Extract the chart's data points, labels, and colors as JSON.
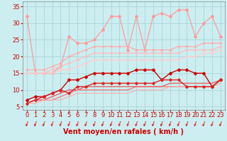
{
  "title": "",
  "xlabel": "Vent moyen/en rafales ( km/h )",
  "bg_color": "#cceef0",
  "grid_color": "#aad4d8",
  "x_ticks": [
    0,
    1,
    2,
    3,
    4,
    5,
    6,
    7,
    8,
    9,
    10,
    11,
    12,
    13,
    14,
    15,
    16,
    17,
    18,
    19,
    20,
    21,
    22,
    23
  ],
  "y_ticks": [
    5,
    10,
    15,
    20,
    25,
    30,
    35
  ],
  "ylim": [
    4.0,
    36.5
  ],
  "xlim": [
    -0.5,
    23.5
  ],
  "lines": [
    {
      "x": [
        0,
        1,
        2,
        3,
        4,
        5,
        6,
        7,
        8,
        9,
        10,
        11,
        12,
        13,
        14,
        15,
        16,
        17,
        18,
        19,
        20,
        21,
        22,
        23
      ],
      "y": [
        32,
        15,
        15,
        15,
        17,
        26,
        24,
        24,
        25,
        28,
        32,
        32,
        22,
        32,
        22,
        32,
        33,
        32,
        34,
        34,
        26,
        30,
        32,
        26
      ],
      "color": "#ff9999",
      "lw": 0.9,
      "marker": "D",
      "ms": 2.0
    },
    {
      "x": [
        0,
        1,
        2,
        3,
        4,
        5,
        6,
        7,
        8,
        9,
        10,
        11,
        12,
        13,
        14,
        15,
        16,
        17,
        18,
        19,
        20,
        21,
        22,
        23
      ],
      "y": [
        16,
        16,
        16,
        17,
        18,
        20,
        21,
        22,
        23,
        23,
        23,
        23,
        23,
        22,
        22,
        22,
        22,
        22,
        23,
        23,
        23,
        24,
        24,
        24
      ],
      "color": "#ffaaaa",
      "lw": 0.9,
      "marker": "+",
      "ms": 3.0
    },
    {
      "x": [
        0,
        1,
        2,
        3,
        4,
        5,
        6,
        7,
        8,
        9,
        10,
        11,
        12,
        13,
        14,
        15,
        16,
        17,
        18,
        19,
        20,
        21,
        22,
        23
      ],
      "y": [
        15,
        15,
        15,
        16,
        17,
        18,
        19,
        20,
        21,
        21,
        21,
        21,
        21,
        21,
        21,
        21,
        21,
        21,
        21,
        22,
        22,
        22,
        22,
        23
      ],
      "color": "#ffbbbb",
      "lw": 0.9,
      "marker": "+",
      "ms": 2.5
    },
    {
      "x": [
        0,
        1,
        2,
        3,
        4,
        5,
        6,
        7,
        8,
        9,
        10,
        11,
        12,
        13,
        14,
        15,
        16,
        17,
        18,
        19,
        20,
        21,
        22,
        23
      ],
      "y": [
        15,
        15,
        15,
        15,
        16,
        16,
        17,
        18,
        19,
        19,
        19,
        19,
        19,
        19,
        19,
        19,
        19,
        19,
        19,
        20,
        20,
        21,
        21,
        22
      ],
      "color": "#ffcccc",
      "lw": 0.9,
      "marker": "+",
      "ms": 2.5
    },
    {
      "x": [
        0,
        1,
        2,
        3,
        4,
        5,
        6,
        7,
        8,
        9,
        10,
        11,
        12,
        13,
        14,
        15,
        16,
        17,
        18,
        19,
        20,
        21,
        22,
        23
      ],
      "y": [
        7,
        8,
        8,
        9,
        10,
        13,
        13,
        14,
        15,
        15,
        15,
        15,
        15,
        16,
        16,
        16,
        13,
        15,
        16,
        16,
        15,
        15,
        11,
        13
      ],
      "color": "#cc0000",
      "lw": 1.0,
      "marker": "D",
      "ms": 2.0
    },
    {
      "x": [
        0,
        1,
        2,
        3,
        4,
        5,
        6,
        7,
        8,
        9,
        10,
        11,
        12,
        13,
        14,
        15,
        16,
        17,
        18,
        19,
        20,
        21,
        22,
        23
      ],
      "y": [
        6,
        7,
        8,
        9,
        10,
        9,
        11,
        11,
        12,
        12,
        12,
        12,
        12,
        12,
        12,
        12,
        13,
        13,
        13,
        11,
        11,
        11,
        11,
        13
      ],
      "color": "#dd2222",
      "lw": 1.0,
      "marker": "D",
      "ms": 1.8
    },
    {
      "x": [
        0,
        1,
        2,
        3,
        4,
        5,
        6,
        7,
        8,
        9,
        10,
        11,
        12,
        13,
        14,
        15,
        16,
        17,
        18,
        19,
        20,
        21,
        22,
        23
      ],
      "y": [
        6,
        7,
        7,
        8,
        9,
        10,
        10,
        11,
        11,
        11,
        11,
        11,
        11,
        11,
        11,
        11,
        11,
        12,
        12,
        12,
        12,
        12,
        12,
        13
      ],
      "color": "#ee4444",
      "lw": 0.8,
      "marker": null,
      "ms": 0
    },
    {
      "x": [
        0,
        1,
        2,
        3,
        4,
        5,
        6,
        7,
        8,
        9,
        10,
        11,
        12,
        13,
        14,
        15,
        16,
        17,
        18,
        19,
        20,
        21,
        22,
        23
      ],
      "y": [
        6,
        7,
        7,
        7,
        8,
        9,
        10,
        10,
        10,
        10,
        10,
        10,
        10,
        11,
        11,
        11,
        11,
        11,
        11,
        11,
        11,
        11,
        11,
        13
      ],
      "color": "#ff6666",
      "lw": 0.8,
      "marker": null,
      "ms": 0
    },
    {
      "x": [
        0,
        1,
        2,
        3,
        4,
        5,
        6,
        7,
        8,
        9,
        10,
        11,
        12,
        13,
        14,
        15,
        16,
        17,
        18,
        19,
        20,
        21,
        22,
        23
      ],
      "y": [
        6,
        6,
        7,
        7,
        7,
        8,
        9,
        9,
        9,
        9,
        9,
        9,
        9,
        10,
        10,
        10,
        10,
        11,
        11,
        11,
        11,
        11,
        11,
        12
      ],
      "color": "#ffaaaa",
      "lw": 0.8,
      "marker": null,
      "ms": 0
    }
  ],
  "arrow_color": "#dd2222",
  "xlabel_color": "#cc0000",
  "xlabel_fontsize": 7,
  "tick_color": "#cc0000",
  "tick_fontsize": 6,
  "spine_color": "#888888",
  "axis_lw": 0.5
}
